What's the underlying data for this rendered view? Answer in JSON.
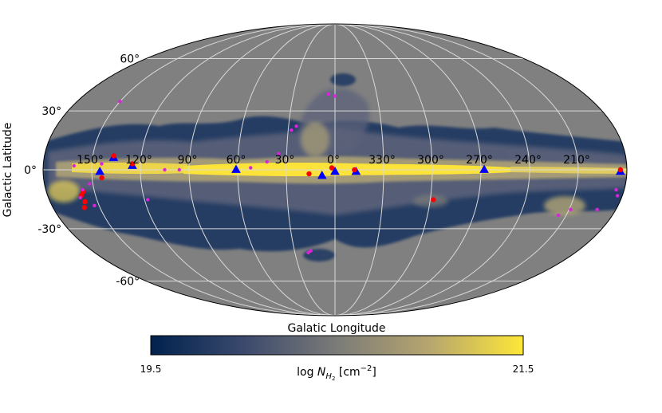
{
  "chart_data": {
    "type": "heatmap",
    "projection": "mollweide",
    "xlabel": "Galatic Longitude",
    "ylabel": "Galactic Latitude",
    "lat_ticks": [
      {
        "value": 60,
        "label": "60°"
      },
      {
        "value": 30,
        "label": "30°"
      },
      {
        "value": 0,
        "label": "0°"
      },
      {
        "value": -30,
        "label": "-30°"
      },
      {
        "value": -60,
        "label": "-60°"
      }
    ],
    "lon_ticks": [
      {
        "value": 150,
        "label": "150°"
      },
      {
        "value": 120,
        "label": "120°"
      },
      {
        "value": 90,
        "label": "90°"
      },
      {
        "value": 60,
        "label": "60°"
      },
      {
        "value": 30,
        "label": "30°"
      },
      {
        "value": 0,
        "label": "0°"
      },
      {
        "value": 330,
        "label": "330°"
      },
      {
        "value": 300,
        "label": "300°"
      },
      {
        "value": 270,
        "label": "270°"
      },
      {
        "value": 240,
        "label": "240°"
      },
      {
        "value": 210,
        "label": "210°"
      }
    ],
    "grid": true,
    "colorbar": {
      "min": 19.5,
      "max": 21.5,
      "min_label": "19.5",
      "max_label": "21.5",
      "label_prefix": "log ",
      "label_symbol": "N",
      "label_sub": "H",
      "label_subsub": "2",
      "label_units": " [cm",
      "label_exp": "−2",
      "label_close": "]",
      "colors": [
        "#00224e",
        "#3b496c",
        "#7b7b78",
        "#b7a66f",
        "#fde737"
      ]
    },
    "background_color": "#808080",
    "series": [
      {
        "marker": "triangle",
        "color": "#0000ff",
        "points": [
          {
            "l": 137,
            "b": 6
          },
          {
            "l": 125,
            "b": 2
          },
          {
            "l": 145,
            "b": -1
          },
          {
            "l": 61,
            "b": 0
          },
          {
            "l": 8,
            "b": -3
          },
          {
            "l": 0,
            "b": -1
          },
          {
            "l": 347,
            "b": -1
          },
          {
            "l": 268,
            "b": 0
          },
          {
            "l": 184,
            "b": -1
          }
        ]
      },
      {
        "marker": "circle",
        "color": "#ff0000",
        "points": [
          {
            "l": 137,
            "b": 7
          },
          {
            "l": 125,
            "b": 3
          },
          {
            "l": 144,
            "b": -4
          },
          {
            "l": 2,
            "b": 1
          },
          {
            "l": 348,
            "b": 0
          },
          {
            "l": 184,
            "b": 0
          },
          {
            "l": 16,
            "b": -2
          },
          {
            "l": 298,
            "b": -15
          },
          {
            "l": 159,
            "b": -13
          },
          {
            "l": 158,
            "b": -16
          },
          {
            "l": 160,
            "b": -19
          },
          {
            "l": 157,
            "b": -11
          }
        ]
      },
      {
        "marker": "circle-small",
        "color": "#dd22dd",
        "points": [
          {
            "l": 5,
            "b": 39
          },
          {
            "l": 0,
            "b": 38
          },
          {
            "l": 25,
            "b": 22
          },
          {
            "l": 150,
            "b": 35
          },
          {
            "l": 144,
            "b": 3
          },
          {
            "l": 161,
            "b": 2
          },
          {
            "l": 105,
            "b": 0
          },
          {
            "l": 42,
            "b": 4
          },
          {
            "l": 52,
            "b": 1
          },
          {
            "l": 152,
            "b": -7
          },
          {
            "l": 157,
            "b": -10
          },
          {
            "l": 153,
            "b": -18
          },
          {
            "l": 160,
            "b": -14
          },
          {
            "l": 118,
            "b": -15
          },
          {
            "l": 20,
            "b": -43
          },
          {
            "l": 18,
            "b": -42
          },
          {
            "l": 209,
            "b": -20
          },
          {
            "l": 185,
            "b": -10
          },
          {
            "l": 183,
            "b": -13
          },
          {
            "l": 192,
            "b": -20
          },
          {
            "l": 215,
            "b": -23
          },
          {
            "l": 96,
            "b": 0
          },
          {
            "l": 35,
            "b": 8
          },
          {
            "l": 28,
            "b": 20
          }
        ]
      }
    ]
  }
}
